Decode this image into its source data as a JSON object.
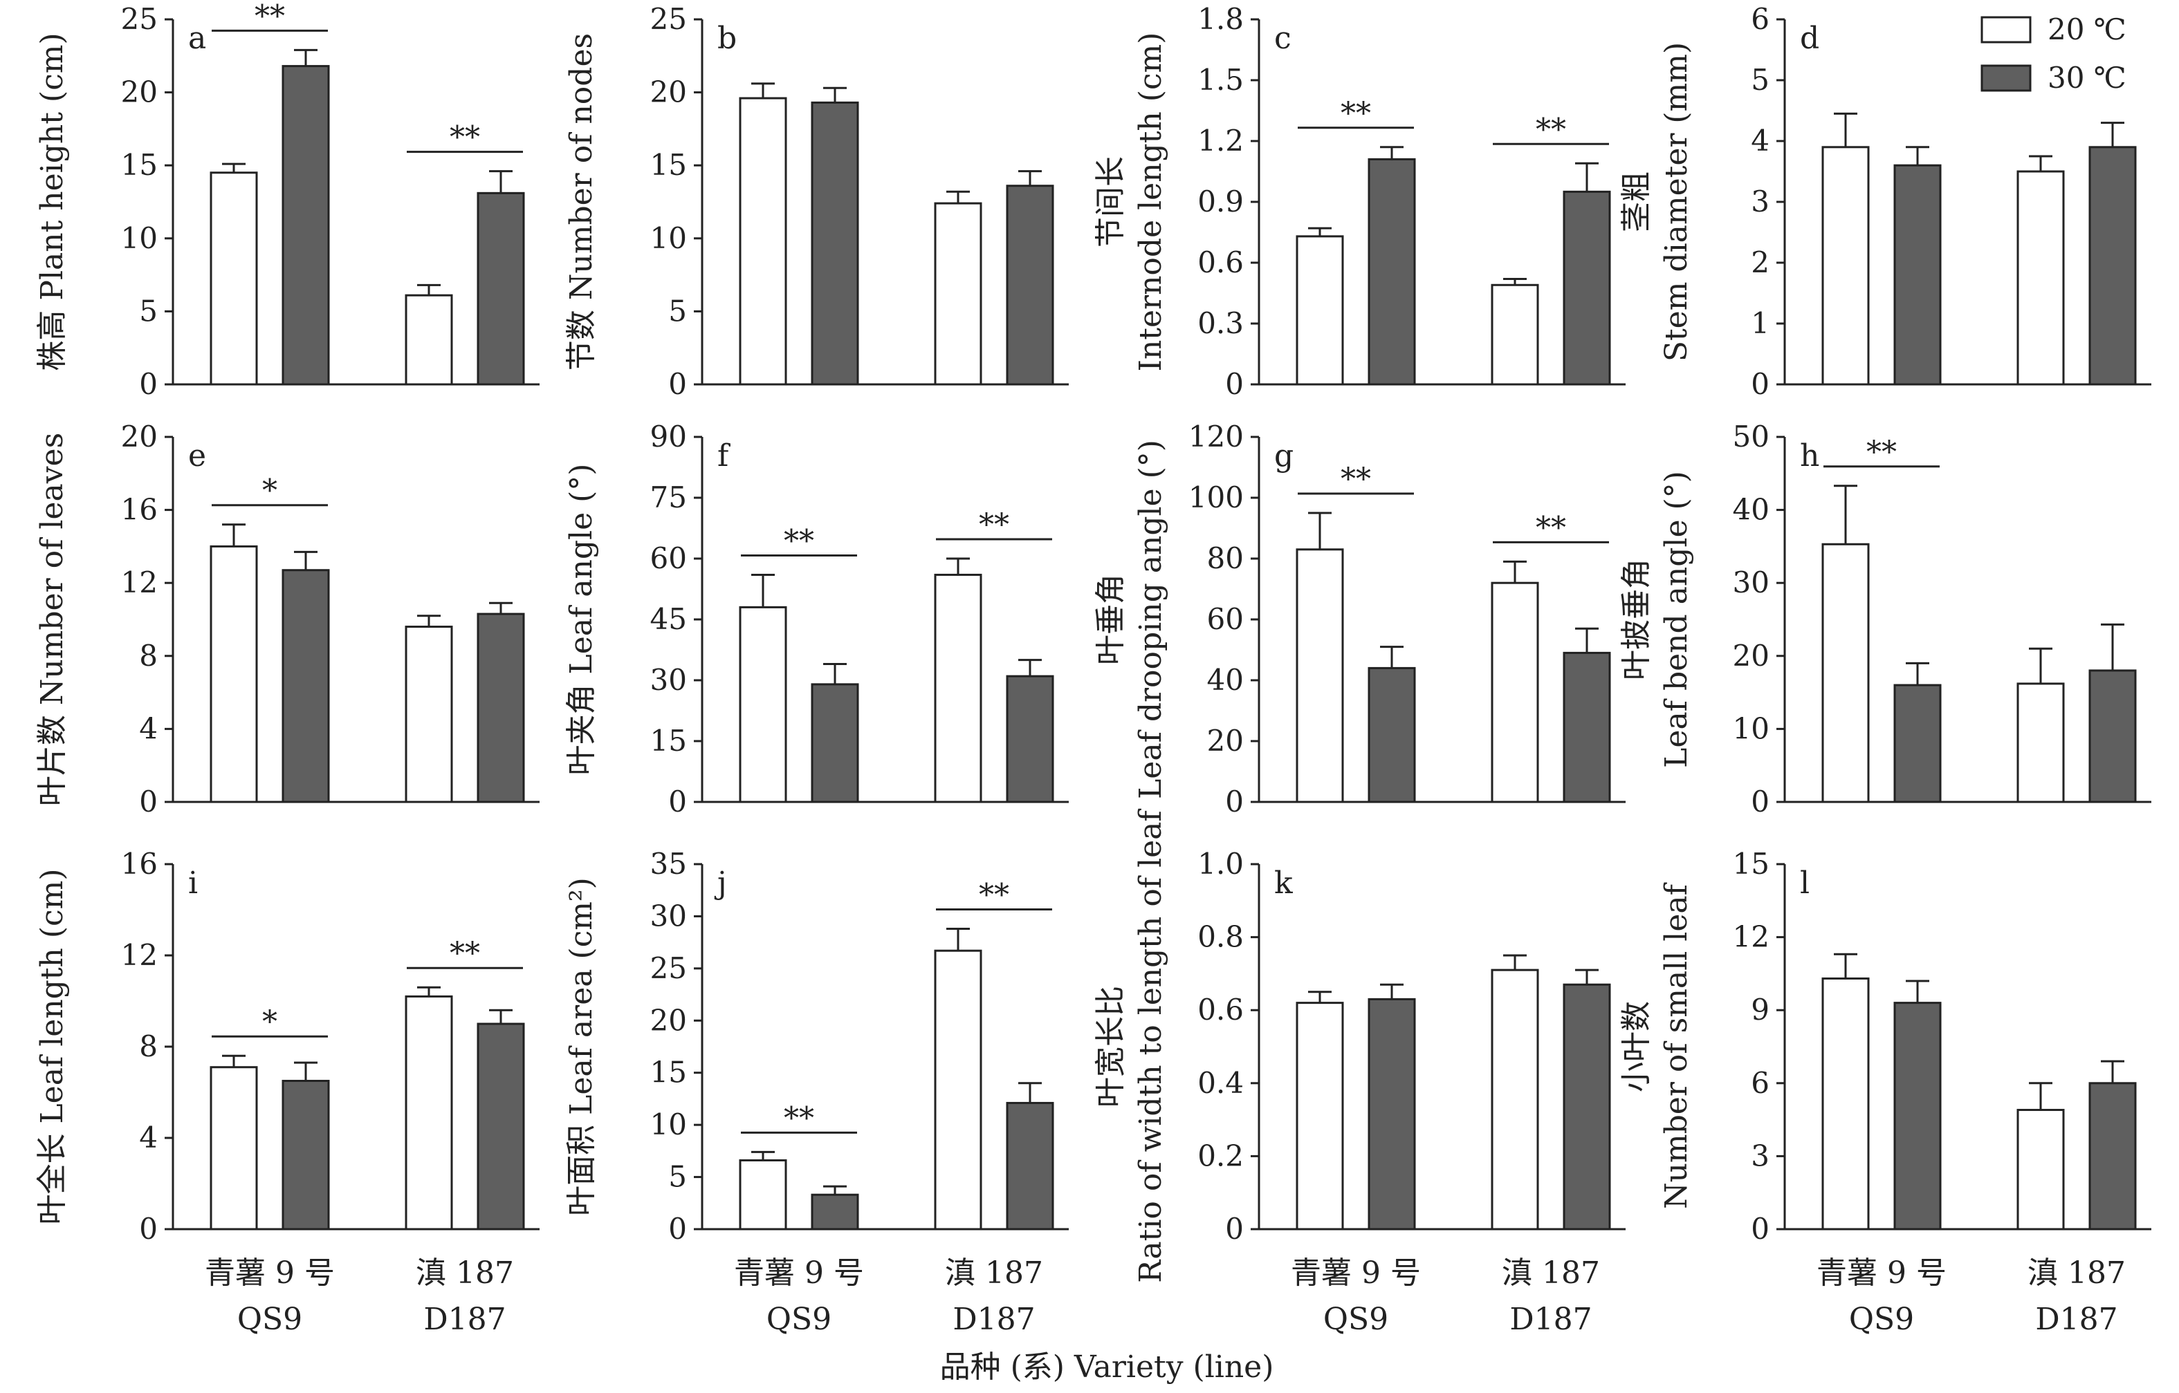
{
  "colors": {
    "temp_20": "#ffffff",
    "temp_30": "#5f5f5f",
    "axis": "#222222"
  },
  "legend": [
    {
      "label": "20 ℃"
    },
    {
      "label": "30 ℃"
    }
  ],
  "x_categories": [
    {
      "cn": "青薯 9 号",
      "en": "QS9"
    },
    {
      "cn": "滇 187",
      "en": "D187"
    }
  ],
  "x_title": "品种 (系) Variety (line)",
  "chart_data": [
    {
      "id": "a",
      "type": "bar",
      "ylabel": [
        "株高 Plant height (cm)"
      ],
      "ylim": [
        0,
        25
      ],
      "yticks": [
        "0",
        "5",
        "10",
        "15",
        "20",
        "25"
      ],
      "categories": [
        "QS9",
        "D187"
      ],
      "series": [
        {
          "name": "20 ℃",
          "values": [
            14.5,
            6.1
          ],
          "errors": [
            0.6,
            0.7
          ]
        },
        {
          "name": "30 ℃",
          "values": [
            21.8,
            13.1
          ],
          "errors": [
            1.1,
            1.5
          ]
        }
      ],
      "significance": [
        "**",
        "**"
      ]
    },
    {
      "id": "b",
      "type": "bar",
      "ylabel": [
        "节数 Number of nodes"
      ],
      "ylim": [
        0,
        25
      ],
      "yticks": [
        "0",
        "5",
        "10",
        "15",
        "20",
        "25"
      ],
      "categories": [
        "QS9",
        "D187"
      ],
      "series": [
        {
          "name": "20 ℃",
          "values": [
            19.6,
            12.4
          ],
          "errors": [
            1.0,
            0.8
          ]
        },
        {
          "name": "30 ℃",
          "values": [
            19.3,
            13.6
          ],
          "errors": [
            1.0,
            1.0
          ]
        }
      ],
      "significance": [
        "",
        ""
      ]
    },
    {
      "id": "c",
      "type": "bar",
      "ylabel": [
        "节间长",
        "Internode length (cm)"
      ],
      "ylim": [
        0,
        1.8
      ],
      "yticks": [
        "0",
        "0.3",
        "0.6",
        "0.9",
        "1.2",
        "1.5",
        "1.8"
      ],
      "categories": [
        "QS9",
        "D187"
      ],
      "series": [
        {
          "name": "20 ℃",
          "values": [
            0.73,
            0.49
          ],
          "errors": [
            0.04,
            0.03
          ]
        },
        {
          "name": "30 ℃",
          "values": [
            1.11,
            0.95
          ],
          "errors": [
            0.06,
            0.14
          ]
        }
      ],
      "significance": [
        "**",
        "**"
      ]
    },
    {
      "id": "d",
      "type": "bar",
      "ylabel": [
        "茎粗",
        "Stem diameter (mm)"
      ],
      "ylim": [
        0,
        6
      ],
      "yticks": [
        "0",
        "1",
        "2",
        "3",
        "4",
        "5",
        "6"
      ],
      "categories": [
        "QS9",
        "D187"
      ],
      "series": [
        {
          "name": "20 ℃",
          "values": [
            3.9,
            3.5
          ],
          "errors": [
            0.55,
            0.25
          ]
        },
        {
          "name": "30 ℃",
          "values": [
            3.6,
            3.9
          ],
          "errors": [
            0.3,
            0.4
          ]
        }
      ],
      "significance": [
        "",
        ""
      ]
    },
    {
      "id": "e",
      "type": "bar",
      "ylabel": [
        "叶片数 Number of leaves"
      ],
      "ylim": [
        0,
        20
      ],
      "yticks": [
        "0",
        "4",
        "8",
        "12",
        "16",
        "20"
      ],
      "categories": [
        "QS9",
        "D187"
      ],
      "series": [
        {
          "name": "20 ℃",
          "values": [
            14.0,
            9.6
          ],
          "errors": [
            1.2,
            0.6
          ]
        },
        {
          "name": "30 ℃",
          "values": [
            12.7,
            10.3
          ],
          "errors": [
            1.0,
            0.6
          ]
        }
      ],
      "significance": [
        "*",
        ""
      ]
    },
    {
      "id": "f",
      "type": "bar",
      "ylabel": [
        "叶夹角 Leaf angle (°)"
      ],
      "ylim": [
        0,
        90
      ],
      "yticks": [
        "0",
        "15",
        "30",
        "45",
        "60",
        "75",
        "90"
      ],
      "categories": [
        "QS9",
        "D187"
      ],
      "series": [
        {
          "name": "20 ℃",
          "values": [
            48,
            56
          ],
          "errors": [
            8,
            4
          ]
        },
        {
          "name": "30 ℃",
          "values": [
            29,
            31
          ],
          "errors": [
            5,
            4
          ]
        }
      ],
      "significance": [
        "**",
        "**"
      ]
    },
    {
      "id": "g",
      "type": "bar",
      "ylabel": [
        "叶垂角",
        "Leaf drooping angle (°)"
      ],
      "ylim": [
        0,
        120
      ],
      "yticks": [
        "0",
        "20",
        "40",
        "60",
        "80",
        "100",
        "120"
      ],
      "categories": [
        "QS9",
        "D187"
      ],
      "series": [
        {
          "name": "20 ℃",
          "values": [
            83,
            72
          ],
          "errors": [
            12,
            7
          ]
        },
        {
          "name": "30 ℃",
          "values": [
            44,
            49
          ],
          "errors": [
            7,
            8
          ]
        }
      ],
      "significance": [
        "**",
        "**"
      ]
    },
    {
      "id": "h",
      "type": "bar",
      "ylabel": [
        "叶披垂角",
        "Leaf bend angle (°)"
      ],
      "ylim": [
        0,
        50
      ],
      "yticks": [
        "0",
        "10",
        "20",
        "30",
        "40",
        "50"
      ],
      "categories": [
        "QS9",
        "D187"
      ],
      "series": [
        {
          "name": "20 ℃",
          "values": [
            35.3,
            16.2
          ],
          "errors": [
            8.0,
            4.8
          ]
        },
        {
          "name": "30 ℃",
          "values": [
            16.0,
            18.0
          ],
          "errors": [
            3.0,
            6.3
          ]
        }
      ],
      "significance": [
        "**",
        ""
      ]
    },
    {
      "id": "i",
      "type": "bar",
      "ylabel": [
        "叶全长 Leaf length (cm)"
      ],
      "ylim": [
        0,
        16
      ],
      "yticks": [
        "0",
        "4",
        "8",
        "12",
        "16"
      ],
      "categories": [
        "QS9",
        "D187"
      ],
      "series": [
        {
          "name": "20 ℃",
          "values": [
            7.1,
            10.2
          ],
          "errors": [
            0.5,
            0.4
          ]
        },
        {
          "name": "30 ℃",
          "values": [
            6.5,
            9.0
          ],
          "errors": [
            0.8,
            0.6
          ]
        }
      ],
      "significance": [
        "*",
        "**"
      ]
    },
    {
      "id": "j",
      "type": "bar",
      "ylabel": [
        "叶面积 Leaf area (cm²)"
      ],
      "ylim": [
        0,
        35
      ],
      "yticks": [
        "0",
        "5",
        "10",
        "15",
        "20",
        "25",
        "30",
        "35"
      ],
      "categories": [
        "QS9",
        "D187"
      ],
      "series": [
        {
          "name": "20 ℃",
          "values": [
            6.6,
            26.7
          ],
          "errors": [
            0.8,
            2.1
          ]
        },
        {
          "name": "30 ℃",
          "values": [
            3.3,
            12.1
          ],
          "errors": [
            0.8,
            1.9
          ]
        }
      ],
      "significance": [
        "**",
        "**"
      ]
    },
    {
      "id": "k",
      "type": "bar",
      "ylabel": [
        "叶宽长比",
        "Ratio of width to length of leaf"
      ],
      "ylim": [
        0,
        1.0
      ],
      "yticks": [
        "0",
        "0.2",
        "0.4",
        "0.6",
        "0.8",
        "1.0"
      ],
      "categories": [
        "QS9",
        "D187"
      ],
      "series": [
        {
          "name": "20 ℃",
          "values": [
            0.62,
            0.71
          ],
          "errors": [
            0.03,
            0.04
          ]
        },
        {
          "name": "30 ℃",
          "values": [
            0.63,
            0.67
          ],
          "errors": [
            0.04,
            0.04
          ]
        }
      ],
      "significance": [
        "",
        ""
      ]
    },
    {
      "id": "l",
      "type": "bar",
      "ylabel": [
        "小叶数",
        "Number of small leaf"
      ],
      "ylim": [
        0,
        15
      ],
      "yticks": [
        "0",
        "3",
        "6",
        "9",
        "12",
        "15"
      ],
      "categories": [
        "QS9",
        "D187"
      ],
      "series": [
        {
          "name": "20 ℃",
          "values": [
            10.3,
            4.9
          ],
          "errors": [
            1.0,
            1.1
          ]
        },
        {
          "name": "30 ℃",
          "values": [
            9.3,
            6.0
          ],
          "errors": [
            0.9,
            0.9
          ]
        }
      ],
      "significance": [
        "",
        ""
      ]
    }
  ]
}
